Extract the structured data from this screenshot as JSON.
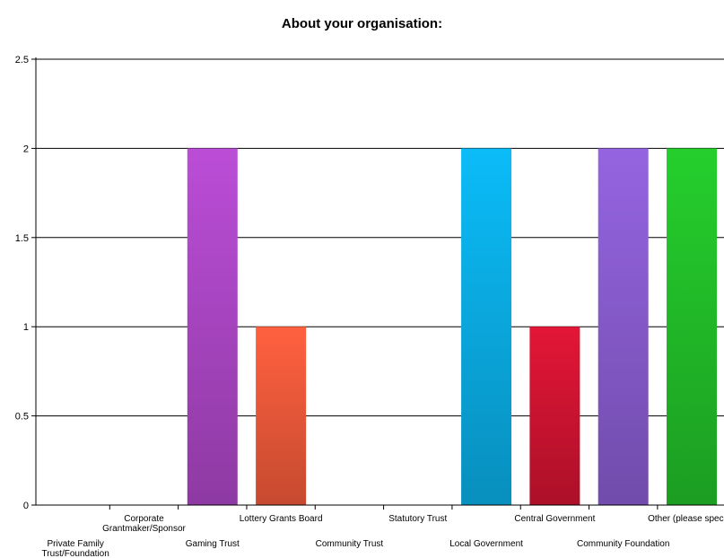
{
  "chart_data": {
    "type": "bar",
    "title": "About your organisation:",
    "xlabel": "",
    "ylabel": "",
    "ylim": [
      0,
      2.5
    ],
    "yticks": [
      "0",
      "0.5",
      "1",
      "1.5",
      "2",
      "2.5"
    ],
    "grid": true,
    "categories": [
      "Private Family Trust/Foundation",
      "Corporate Grantmaker/Sponsor",
      "Gaming Trust",
      "Lottery Grants Board",
      "Community Trust",
      "Statutory Trust",
      "Local Government",
      "Central Government",
      "Community Foundation",
      "Other (please specify)"
    ],
    "values": [
      0,
      0,
      2,
      1,
      0,
      0,
      2,
      1,
      2,
      2
    ],
    "colors": [
      "#d0d0d0",
      "#d0d0d0",
      "#ad47c7",
      "#f15a3a",
      "#d0d0d0",
      "#d0d0d0",
      "#0aaee6",
      "#d21432",
      "#8a5dd0",
      "#22c02a"
    ]
  }
}
